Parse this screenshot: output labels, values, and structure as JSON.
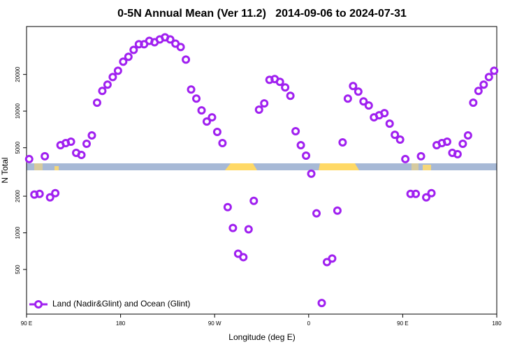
{
  "chart_data": {
    "type": "scatter",
    "title": "0-5N Annual Mean (Ver 11.2)   2014-09-06 to 2024-07-31",
    "x_label": "Longitude (deg E)",
    "y_label": "N Total",
    "y_scale": "log",
    "xlim": [
      90,
      540
    ],
    "xticks": [
      {
        "value": 90,
        "label": "90 E"
      },
      180,
      {
        "value": 270,
        "label": "90 W"
      },
      {
        "value": 360,
        "label": "0"
      },
      {
        "value": 450,
        "label": "90 E"
      },
      {
        "value": 540,
        "label": "180"
      }
    ],
    "ylim": [
      215,
      49500
    ],
    "yticks": [
      500,
      1000,
      2000,
      5000,
      10000,
      20000
    ],
    "legend": "bottom-left",
    "series": [
      {
        "name": "Land (Nadir&Glint) and Ocean (Glint)",
        "color": "#a020f0",
        "x": [
          92.5,
          97.5,
          102.5,
          107.5,
          112.5,
          117.5,
          122.5,
          127.5,
          132.5,
          137.5,
          142.5,
          147.5,
          152.5,
          157.5,
          162.5,
          167.5,
          172.5,
          177.5,
          182.5,
          187.5,
          192.5,
          197.5,
          202.5,
          207.5,
          212.5,
          217.5,
          222.5,
          227.5,
          232.5,
          237.5,
          242.5,
          247.5,
          252.5,
          257.5,
          262.5,
          267.5,
          272.5,
          277.5,
          282.5,
          287.5,
          292.5,
          297.5,
          302.5,
          307.5,
          312.5,
          317.5,
          322.5,
          327.5,
          332.5,
          337.5,
          342.5,
          347.5,
          352.5,
          357.5,
          362.5,
          367.5,
          372.5,
          377.5,
          382.5,
          387.5,
          392.5,
          397.5,
          402.5,
          407.5,
          412.5,
          417.5,
          422.5,
          427.5,
          432.5,
          437.5,
          442.5,
          447.5,
          452.5,
          457.5,
          462.5,
          467.5,
          472.5,
          477.5,
          482.5,
          487.5,
          492.5,
          497.5,
          502.5,
          507.5,
          512.5,
          517.5,
          522.5,
          527.5,
          532.5,
          537.5
        ],
        "values": [
          4033,
          2063,
          2089,
          4254,
          1956,
          2117,
          5248,
          5458,
          5607,
          4539,
          4365,
          5387,
          6310,
          11720,
          14650,
          16490,
          19050,
          21450,
          25460,
          27910,
          31830,
          35390,
          35390,
          37760,
          36800,
          38800,
          40360,
          38800,
          35810,
          33570,
          26470,
          15040,
          12670,
          10140,
          8210,
          8890,
          6740,
          5458,
          1626,
          1096,
          674,
          631,
          1069,
          1832,
          10270,
          11560,
          18070,
          18330,
          17380,
          15640,
          13360,
          6830,
          5248,
          4306,
          3060,
          1445,
          265,
          575,
          615,
          1523,
          5534,
          12670,
          16060,
          14450,
          12020,
          11110,
          8890,
          9240,
          9610,
          7890,
          6390,
          5830,
          4033,
          2089,
          2089,
          4254,
          1956,
          2117,
          5248,
          5458,
          5607,
          4539,
          4424,
          5387,
          6310,
          11720,
          14650,
          16490,
          19050,
          21450
        ]
      }
    ]
  }
}
